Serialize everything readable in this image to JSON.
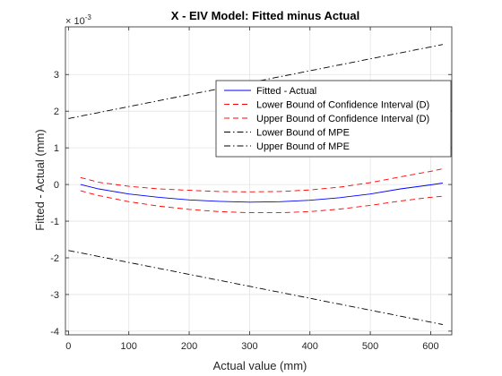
{
  "chart_data": {
    "type": "line",
    "title": "X - EIV Model: Fitted minus Actual",
    "xlabel": "Actual value (mm)",
    "ylabel": "Fitted - Actual (mm)",
    "y_exponent_base": "× 10",
    "y_exponent_power": "-3",
    "y_scale_factor": 0.001,
    "xlim": [
      -5,
      635
    ],
    "ylim": [
      -4.1,
      4.3
    ],
    "x_ticks": [
      0,
      100,
      200,
      300,
      400,
      500,
      600
    ],
    "y_ticks": [
      -4,
      -3,
      -2,
      -1,
      0,
      1,
      2,
      3
    ],
    "grid": true,
    "legend_position": "top-right",
    "series": [
      {
        "name": "Fitted - Actual",
        "color": "#0000ff",
        "style": "solid",
        "x": [
          20,
          50,
          100,
          150,
          200,
          250,
          300,
          350,
          400,
          450,
          500,
          550,
          600,
          620
        ],
        "y": [
          0.0,
          -0.12,
          -0.26,
          -0.35,
          -0.42,
          -0.46,
          -0.48,
          -0.47,
          -0.43,
          -0.36,
          -0.26,
          -0.12,
          -0.01,
          0.04
        ]
      },
      {
        "name": "Lower Bound of Confidence Interval (D)",
        "color": "#ff0000",
        "style": "dashed",
        "x": [
          20,
          50,
          100,
          150,
          200,
          250,
          300,
          350,
          400,
          450,
          500,
          550,
          600,
          620
        ],
        "y": [
          -0.17,
          -0.3,
          -0.47,
          -0.59,
          -0.68,
          -0.74,
          -0.77,
          -0.77,
          -0.74,
          -0.67,
          -0.57,
          -0.45,
          -0.35,
          -0.32
        ]
      },
      {
        "name": "Upper Bound of Confidence Interval (D)",
        "color": "#ff0000",
        "style": "dashed",
        "x": [
          20,
          50,
          100,
          150,
          200,
          250,
          300,
          350,
          400,
          450,
          500,
          550,
          600,
          620
        ],
        "y": [
          0.19,
          0.06,
          -0.05,
          -0.12,
          -0.16,
          -0.19,
          -0.2,
          -0.19,
          -0.15,
          -0.07,
          0.05,
          0.21,
          0.36,
          0.43
        ]
      },
      {
        "name": "Lower Bound of MPE",
        "color": "#000000",
        "style": "dashdot",
        "x": [
          0,
          620
        ],
        "y": [
          -1.8,
          -3.82
        ]
      },
      {
        "name": "Upper Bound of MPE",
        "color": "#000000",
        "style": "dashdot",
        "x": [
          0,
          620
        ],
        "y": [
          1.8,
          3.82
        ]
      }
    ]
  }
}
